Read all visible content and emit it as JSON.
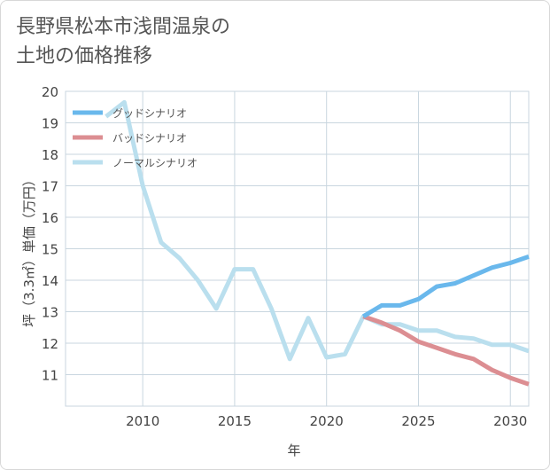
{
  "title": {
    "line1": "長野県松本市浅間温泉の",
    "line2": "土地の価格推移"
  },
  "chart_data": {
    "type": "line",
    "title": "長野県松本市浅間温泉の土地の価格推移",
    "xlabel": "年",
    "ylabel": "坪（3.3㎡）単価（万円）",
    "xlim": [
      2005.8,
      2031
    ],
    "ylim": [
      10,
      20
    ],
    "xticks": [
      2010,
      2015,
      2020,
      2025,
      2030
    ],
    "yticks": [
      11,
      12,
      13,
      14,
      15,
      16,
      17,
      18,
      19,
      20
    ],
    "grid": true,
    "legend_position": "top-left",
    "series": [
      {
        "name": "グッドシナリオ",
        "color": "#6ab8ec",
        "x": [
          2022,
          2023,
          2024,
          2025,
          2026,
          2027,
          2028,
          2029,
          2030,
          2031
        ],
        "y": [
          12.85,
          13.2,
          13.2,
          13.4,
          13.8,
          13.9,
          14.15,
          14.4,
          14.55,
          14.75
        ]
      },
      {
        "name": "バッドシナリオ",
        "color": "#dc8e92",
        "x": [
          2022,
          2023,
          2024,
          2025,
          2026,
          2027,
          2028,
          2029,
          2030,
          2031
        ],
        "y": [
          12.85,
          12.65,
          12.4,
          12.05,
          11.85,
          11.65,
          11.5,
          11.15,
          10.9,
          10.7
        ]
      },
      {
        "name": "ノーマルシナリオ",
        "color": "#badfee",
        "x": [
          2008,
          2009,
          2010,
          2011,
          2012,
          2013,
          2014,
          2015,
          2016,
          2017,
          2018,
          2019,
          2020,
          2021,
          2022,
          2023,
          2024,
          2025,
          2026,
          2027,
          2028,
          2029,
          2030,
          2031
        ],
        "y": [
          19.2,
          19.65,
          17.0,
          15.2,
          14.7,
          14.0,
          13.1,
          14.35,
          14.35,
          13.1,
          11.5,
          12.8,
          11.55,
          11.65,
          12.85,
          12.6,
          12.6,
          12.4,
          12.4,
          12.2,
          12.15,
          11.95,
          11.95,
          11.75
        ]
      }
    ]
  }
}
